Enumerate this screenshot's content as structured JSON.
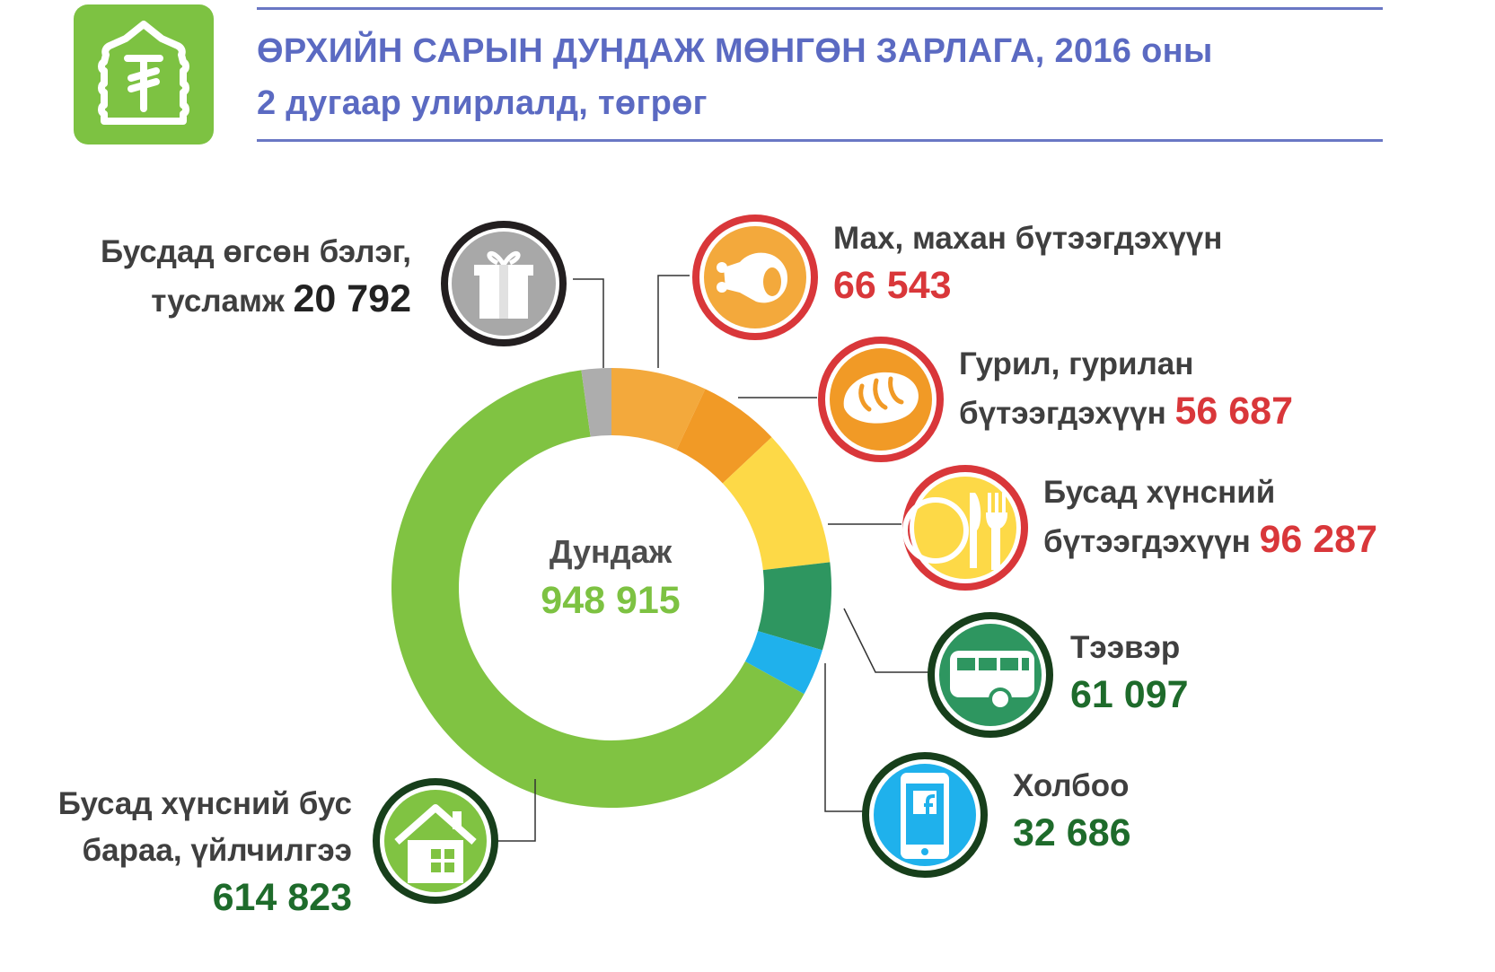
{
  "header": {
    "title_line1": "ӨРХИЙН САРЫН ДУНДАЖ МӨНГӨН ЗАРЛАГА, 2016 оны",
    "title_line2": "2 дугаар улирлалд, төгрөг"
  },
  "center": {
    "label": "Дундаж",
    "value": "948 915"
  },
  "labels": {
    "gift": {
      "line1": "Бусдад өгсөн бэлэг,",
      "line2": "тусламж",
      "value": "20 792"
    },
    "meat": {
      "line1": "Мах, махан бүтээгдэхүүн",
      "value": "66 543"
    },
    "flour": {
      "line1": "Гурил, гурилан",
      "line2": "бүтээгдэхүүн",
      "value": "56 687"
    },
    "food": {
      "line1": "Бусад хүнсний",
      "line2": "бүтээгдэхүүн",
      "value": "96 287"
    },
    "transport": {
      "line1": "Тээвэр",
      "value": "61 097"
    },
    "comm": {
      "line1": "Холбоо",
      "value": "32 686"
    },
    "nonfood": {
      "line1": "Бусад хүнсний бус",
      "line2": "бараа,  үйлчилгээ",
      "value": "614 823"
    }
  },
  "colors": {
    "title": "#5b6ac2",
    "red_value": "#d9373a",
    "green_value": "#1e6b2b",
    "total": "#7dc242"
  },
  "chart_data": {
    "type": "donut",
    "total": 948915,
    "slices": [
      {
        "name": "Мах, махан бүтээгдэхүүн",
        "value": 66543,
        "color": "#f3a93c"
      },
      {
        "name": "Гурил, гурилан бүтээгдэхүүн",
        "value": 56687,
        "color": "#f19a26"
      },
      {
        "name": "Бусад хүнсний бүтээгдэхүүн",
        "value": 96287,
        "color": "#fdd947"
      },
      {
        "name": "Тээвэр",
        "value": 61097,
        "color": "#2e9660"
      },
      {
        "name": "Холбоо",
        "value": 32686,
        "color": "#1fb1ec"
      },
      {
        "name": "Бусад хүнсний бус бараа, үйлчилгээ",
        "value": 614823,
        "color": "#80c342"
      },
      {
        "name": "Бусдад өгсөн бэлэг, тусламж",
        "value": 20792,
        "color": "#adadad"
      }
    ]
  }
}
